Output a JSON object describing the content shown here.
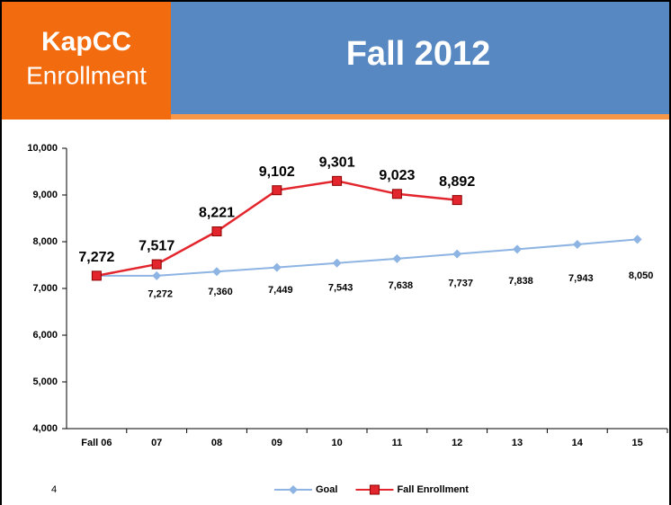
{
  "slide": {
    "brand": "KapCC",
    "subtitle": "Enrollment",
    "title": "Fall 2012",
    "page_number": "4"
  },
  "chart_data": {
    "type": "line",
    "categories": [
      "Fall 06",
      "07",
      "08",
      "09",
      "10",
      "11",
      "12",
      "13",
      "14",
      "15"
    ],
    "series": [
      {
        "name": "Goal",
        "color": "#8db4e2",
        "values": [
          7272,
          7272,
          7360,
          7449,
          7543,
          7638,
          7737,
          7838,
          7943,
          8050
        ],
        "value_labels": [
          null,
          "7,272",
          "7,360",
          "7,449",
          "7,543",
          "7,638",
          "7,737",
          "7,838",
          "7,943",
          "8,050"
        ]
      },
      {
        "name": "Fall Enrollment",
        "color": "#e3262e",
        "values": [
          7272,
          7517,
          8221,
          9102,
          9301,
          9023,
          8892,
          null,
          null,
          null
        ],
        "value_labels": [
          "7,272",
          "7,517",
          "8,221",
          "9,102",
          "9,301",
          "9,023",
          "8,892",
          null,
          null,
          null
        ]
      }
    ],
    "ylim": [
      4000,
      10000
    ],
    "yticks": [
      {
        "value": 4000,
        "label": "4,000"
      },
      {
        "value": 5000,
        "label": "5,000"
      },
      {
        "value": 6000,
        "label": "6,000"
      },
      {
        "value": 7000,
        "label": "7,000"
      },
      {
        "value": 8000,
        "label": "8,000"
      },
      {
        "value": 9000,
        "label": "9,000"
      },
      {
        "value": 10000,
        "label": "10,000"
      }
    ],
    "legend": "bottom"
  }
}
